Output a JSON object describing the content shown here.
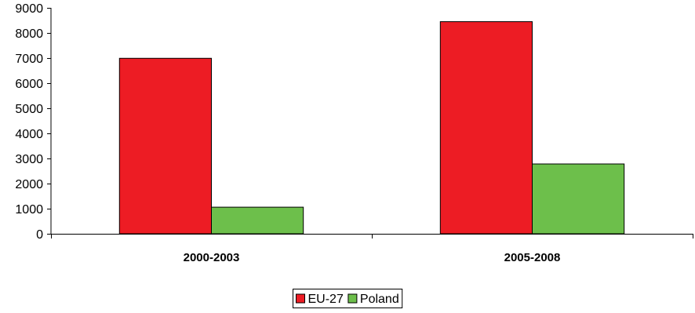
{
  "chart_data": {
    "type": "bar",
    "categories": [
      "2000-2003",
      "2005-2008"
    ],
    "series": [
      {
        "name": "EU-27",
        "color": "#ed1c24",
        "values": [
          6990,
          8450
        ]
      },
      {
        "name": "Poland",
        "color": "#6dbf4b",
        "values": [
          1060,
          2780
        ]
      }
    ],
    "ylim": [
      0,
      9000
    ],
    "yticks": [
      0,
      1000,
      2000,
      3000,
      4000,
      5000,
      6000,
      7000,
      8000,
      9000
    ],
    "title": "",
    "xlabel": "",
    "ylabel": "",
    "grid": false,
    "legend_position": "bottom-center"
  }
}
